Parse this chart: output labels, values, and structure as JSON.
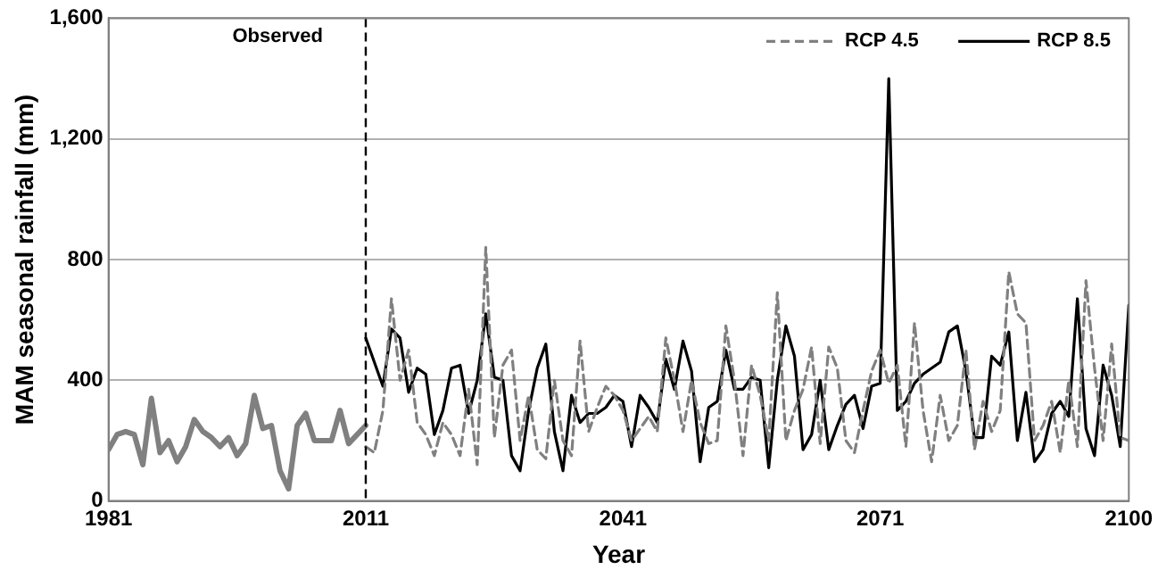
{
  "chart_data": {
    "type": "line",
    "xlabel": "Year",
    "ylabel": "MAM seasonal rainfall (mm)",
    "xlim": [
      1981,
      2100
    ],
    "xticks": [
      1981,
      2011,
      2041,
      2071,
      2100
    ],
    "ylim": [
      0,
      1600
    ],
    "yticks": [
      0,
      400,
      800,
      {
        "value": 1200,
        "label": "1,200"
      },
      {
        "value": 1600,
        "label": "1,600"
      }
    ],
    "grid": "y",
    "legend": "top right",
    "marker": "none",
    "ref_lines": [
      {
        "axis": "x",
        "value": 2011,
        "label": "Observed",
        "color": "#000000",
        "line_style": "dashed"
      }
    ],
    "series": [
      {
        "color": "#808080",
        "line_style": "solid",
        "x": [
          1981,
          1982,
          1983,
          1984,
          1985,
          1986,
          1987,
          1988,
          1989,
          1990,
          1991,
          1992,
          1993,
          1994,
          1995,
          1996,
          1997,
          1998,
          1999,
          2000,
          2001,
          2002,
          2003,
          2004,
          2005,
          2006,
          2007,
          2008,
          2009,
          2010,
          2011
        ],
        "values": [
          170,
          220,
          230,
          220,
          120,
          340,
          160,
          200,
          130,
          180,
          270,
          230,
          210,
          180,
          210,
          150,
          190,
          350,
          240,
          250,
          100,
          40,
          250,
          290,
          200,
          200,
          200,
          300,
          190,
          220,
          250
        ]
      },
      {
        "name": "RCP 4.5",
        "color": "#808080",
        "line_style": "dashed",
        "x": [
          2011,
          2012,
          2013,
          2014,
          2015,
          2016,
          2017,
          2018,
          2019,
          2020,
          2021,
          2022,
          2023,
          2024,
          2025,
          2026,
          2027,
          2028,
          2029,
          2030,
          2031,
          2032,
          2033,
          2034,
          2035,
          2036,
          2037,
          2038,
          2039,
          2040,
          2041,
          2042,
          2043,
          2044,
          2045,
          2046,
          2047,
          2048,
          2049,
          2050,
          2051,
          2052,
          2053,
          2054,
          2055,
          2056,
          2057,
          2058,
          2059,
          2060,
          2061,
          2062,
          2063,
          2064,
          2065,
          2066,
          2067,
          2068,
          2069,
          2070,
          2071,
          2072,
          2073,
          2074,
          2075,
          2076,
          2077,
          2078,
          2079,
          2080,
          2081,
          2082,
          2083,
          2084,
          2085,
          2086,
          2087,
          2088,
          2089,
          2090,
          2091,
          2092,
          2093,
          2094,
          2095,
          2096,
          2097,
          2098,
          2099,
          2100
        ],
        "values": [
          180,
          160,
          300,
          670,
          400,
          500,
          260,
          220,
          150,
          260,
          220,
          150,
          370,
          120,
          840,
          210,
          450,
          500,
          200,
          350,
          170,
          140,
          400,
          200,
          150,
          530,
          230,
          310,
          380,
          350,
          300,
          200,
          240,
          280,
          230,
          540,
          400,
          230,
          400,
          260,
          190,
          200,
          580,
          400,
          150,
          450,
          350,
          200,
          690,
          200,
          300,
          370,
          510,
          190,
          510,
          440,
          200,
          160,
          300,
          430,
          500,
          390,
          450,
          180,
          590,
          300,
          130,
          350,
          200,
          250,
          500,
          170,
          330,
          230,
          300,
          760,
          620,
          590,
          200,
          250,
          330,
          160,
          400,
          180,
          730,
          440,
          200,
          520,
          210,
          200
        ]
      },
      {
        "name": "RCP 8.5",
        "color": "#000000",
        "line_style": "solid",
        "x": [
          2011,
          2012,
          2013,
          2014,
          2015,
          2016,
          2017,
          2018,
          2019,
          2020,
          2021,
          2022,
          2023,
          2024,
          2025,
          2026,
          2027,
          2028,
          2029,
          2030,
          2031,
          2032,
          2033,
          2034,
          2035,
          2036,
          2037,
          2038,
          2039,
          2040,
          2041,
          2042,
          2043,
          2044,
          2045,
          2046,
          2047,
          2048,
          2049,
          2050,
          2051,
          2052,
          2053,
          2054,
          2055,
          2056,
          2057,
          2058,
          2059,
          2060,
          2061,
          2062,
          2063,
          2064,
          2065,
          2066,
          2067,
          2068,
          2069,
          2070,
          2071,
          2072,
          2073,
          2074,
          2075,
          2076,
          2077,
          2078,
          2079,
          2080,
          2081,
          2082,
          2083,
          2084,
          2085,
          2086,
          2087,
          2088,
          2089,
          2090,
          2091,
          2092,
          2093,
          2094,
          2095,
          2096,
          2097,
          2098,
          2099,
          2100
        ],
        "values": [
          540,
          460,
          380,
          570,
          540,
          360,
          440,
          420,
          220,
          300,
          440,
          450,
          290,
          400,
          620,
          410,
          400,
          150,
          100,
          300,
          440,
          520,
          230,
          100,
          350,
          260,
          290,
          290,
          310,
          350,
          330,
          180,
          350,
          310,
          260,
          470,
          370,
          530,
          430,
          130,
          310,
          330,
          500,
          370,
          370,
          410,
          400,
          110,
          400,
          580,
          480,
          170,
          220,
          400,
          170,
          250,
          320,
          350,
          240,
          380,
          390,
          1400,
          300,
          330,
          390,
          420,
          440,
          460,
          560,
          580,
          430,
          210,
          210,
          480,
          450,
          560,
          200,
          360,
          130,
          170,
          290,
          330,
          280,
          670,
          240,
          150,
          450,
          350,
          180,
          650
        ]
      }
    ]
  }
}
